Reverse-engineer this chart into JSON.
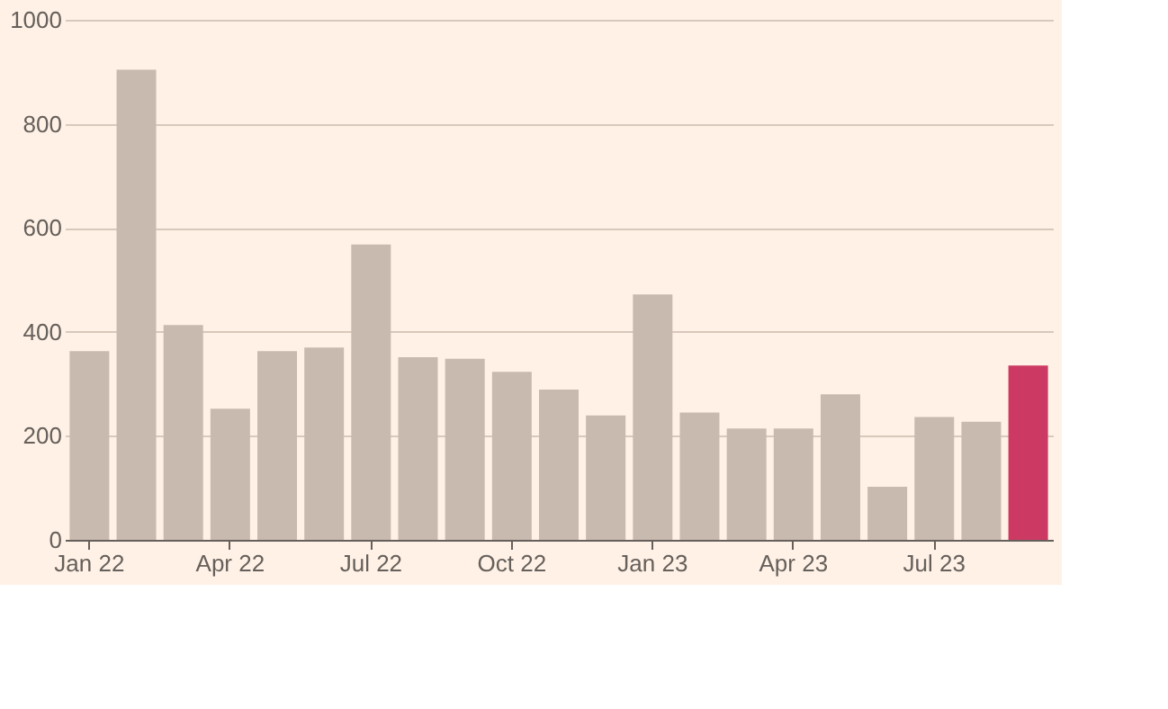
{
  "chart_data": {
    "type": "bar",
    "categories": [
      "Jan 22",
      null,
      null,
      "Apr 22",
      null,
      null,
      "Jul 22",
      null,
      null,
      "Oct 22",
      null,
      null,
      "Jan 23",
      null,
      null,
      "Apr 23",
      null,
      null,
      "Jul 23",
      null,
      null
    ],
    "values": [
      363,
      904,
      413,
      252,
      363,
      370,
      568,
      351,
      348,
      323,
      289,
      239,
      472,
      245,
      214,
      214,
      280,
      102,
      236,
      227,
      335
    ],
    "colors": [
      "#c9bab0",
      "#c9bab0",
      "#c9bab0",
      "#c9bab0",
      "#c9bab0",
      "#c9bab0",
      "#c9bab0",
      "#c9bab0",
      "#c9bab0",
      "#c9bab0",
      "#c9bab0",
      "#c9bab0",
      "#c9bab0",
      "#c9bab0",
      "#c9bab0",
      "#c9bab0",
      "#c9bab0",
      "#c9bab0",
      "#c9bab0",
      "#c9bab0",
      "#cc3a63"
    ],
    "ylim": [
      0,
      1000
    ],
    "yticks": [
      0,
      200,
      400,
      600,
      800,
      1000
    ],
    "grid": "y"
  }
}
